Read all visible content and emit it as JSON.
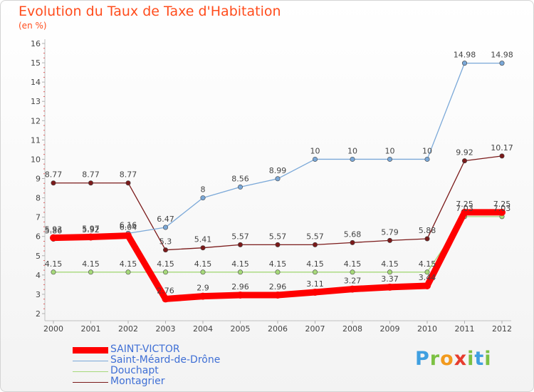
{
  "header": {
    "title": "Evolution du Taux de Taxe d'Habitation",
    "subtitle": "(en %)"
  },
  "brand": {
    "letters": [
      "P",
      "r",
      "o",
      "x",
      "i",
      "t",
      "i"
    ],
    "colors": [
      "#3f9fe0",
      "#7cc143",
      "#f29a1d",
      "#e63c2e",
      "#7cc143",
      "#3f9fe0",
      "#7cc143"
    ]
  },
  "chart_data": {
    "type": "line",
    "title": "Evolution du Taux de Taxe d'Habitation",
    "subtitle": "(en %)",
    "categories": [
      "2000",
      "2001",
      "2002",
      "2003",
      "2004",
      "2005",
      "2006",
      "2007",
      "2008",
      "2009",
      "2010",
      "2011",
      "2012"
    ],
    "ylim": [
      2,
      16
    ],
    "yticks": [
      "2",
      "3",
      "4",
      "5",
      "6",
      "7",
      "8",
      "9",
      "10",
      "11",
      "12",
      "13",
      "14",
      "15",
      "16"
    ],
    "grid": false,
    "legend_position": "bottom-left",
    "series": [
      {
        "name": "Montagrier",
        "color": "#7b1a1a",
        "values": [
          8.77,
          8.77,
          8.77,
          5.3,
          5.41,
          5.57,
          5.57,
          5.57,
          5.68,
          5.79,
          5.88,
          9.92,
          10.17
        ],
        "labels": [
          "8.77",
          "8.77",
          "8.77",
          "5.3",
          "5.41",
          "5.57",
          "5.57",
          "5.57",
          "5.68",
          "5.79",
          "5.88",
          "9.92",
          "10.17"
        ]
      },
      {
        "name": "Douchapt",
        "color": "#a6d97a",
        "values": [
          4.15,
          4.15,
          4.15,
          4.15,
          4.15,
          4.15,
          4.15,
          4.15,
          4.15,
          4.15,
          4.15,
          7.03,
          7.03
        ],
        "labels": [
          "4.15",
          "4.15",
          "4.15",
          "4.15",
          "4.15",
          "4.15",
          "4.15",
          "4.15",
          "4.15",
          "4.15",
          "4.15",
          "7.03",
          "7.03"
        ]
      },
      {
        "name": "Saint-Méard-de-Drône",
        "color": "#7aa8d8",
        "values": [
          5.86,
          5.92,
          6.16,
          6.47,
          8,
          8.56,
          8.99,
          10,
          10,
          10,
          10,
          14.98,
          14.98
        ],
        "labels": [
          "5.86",
          "5.92",
          "6.16",
          "6.47",
          "8",
          "8.56",
          "8.99",
          "10",
          "10",
          "10",
          "10",
          "14.98",
          "14.98"
        ]
      },
      {
        "name": "SAINT-VICTOR",
        "color": "#ff0000",
        "values": [
          5.93,
          5.97,
          6.04,
          2.76,
          2.9,
          2.96,
          2.96,
          3.11,
          3.27,
          3.37,
          3.44,
          7.25,
          7.25
        ],
        "labels": [
          "5.93",
          "5.97",
          "6.04",
          "2.76",
          "2.9",
          "2.96",
          "2.96",
          "3.11",
          "3.27",
          "3.37",
          "3.44",
          "7.25",
          "7.25"
        ]
      }
    ],
    "legend": [
      "SAINT-VICTOR",
      "Saint-Méard-de-Drône",
      "Douchapt",
      "Montagrier"
    ]
  }
}
